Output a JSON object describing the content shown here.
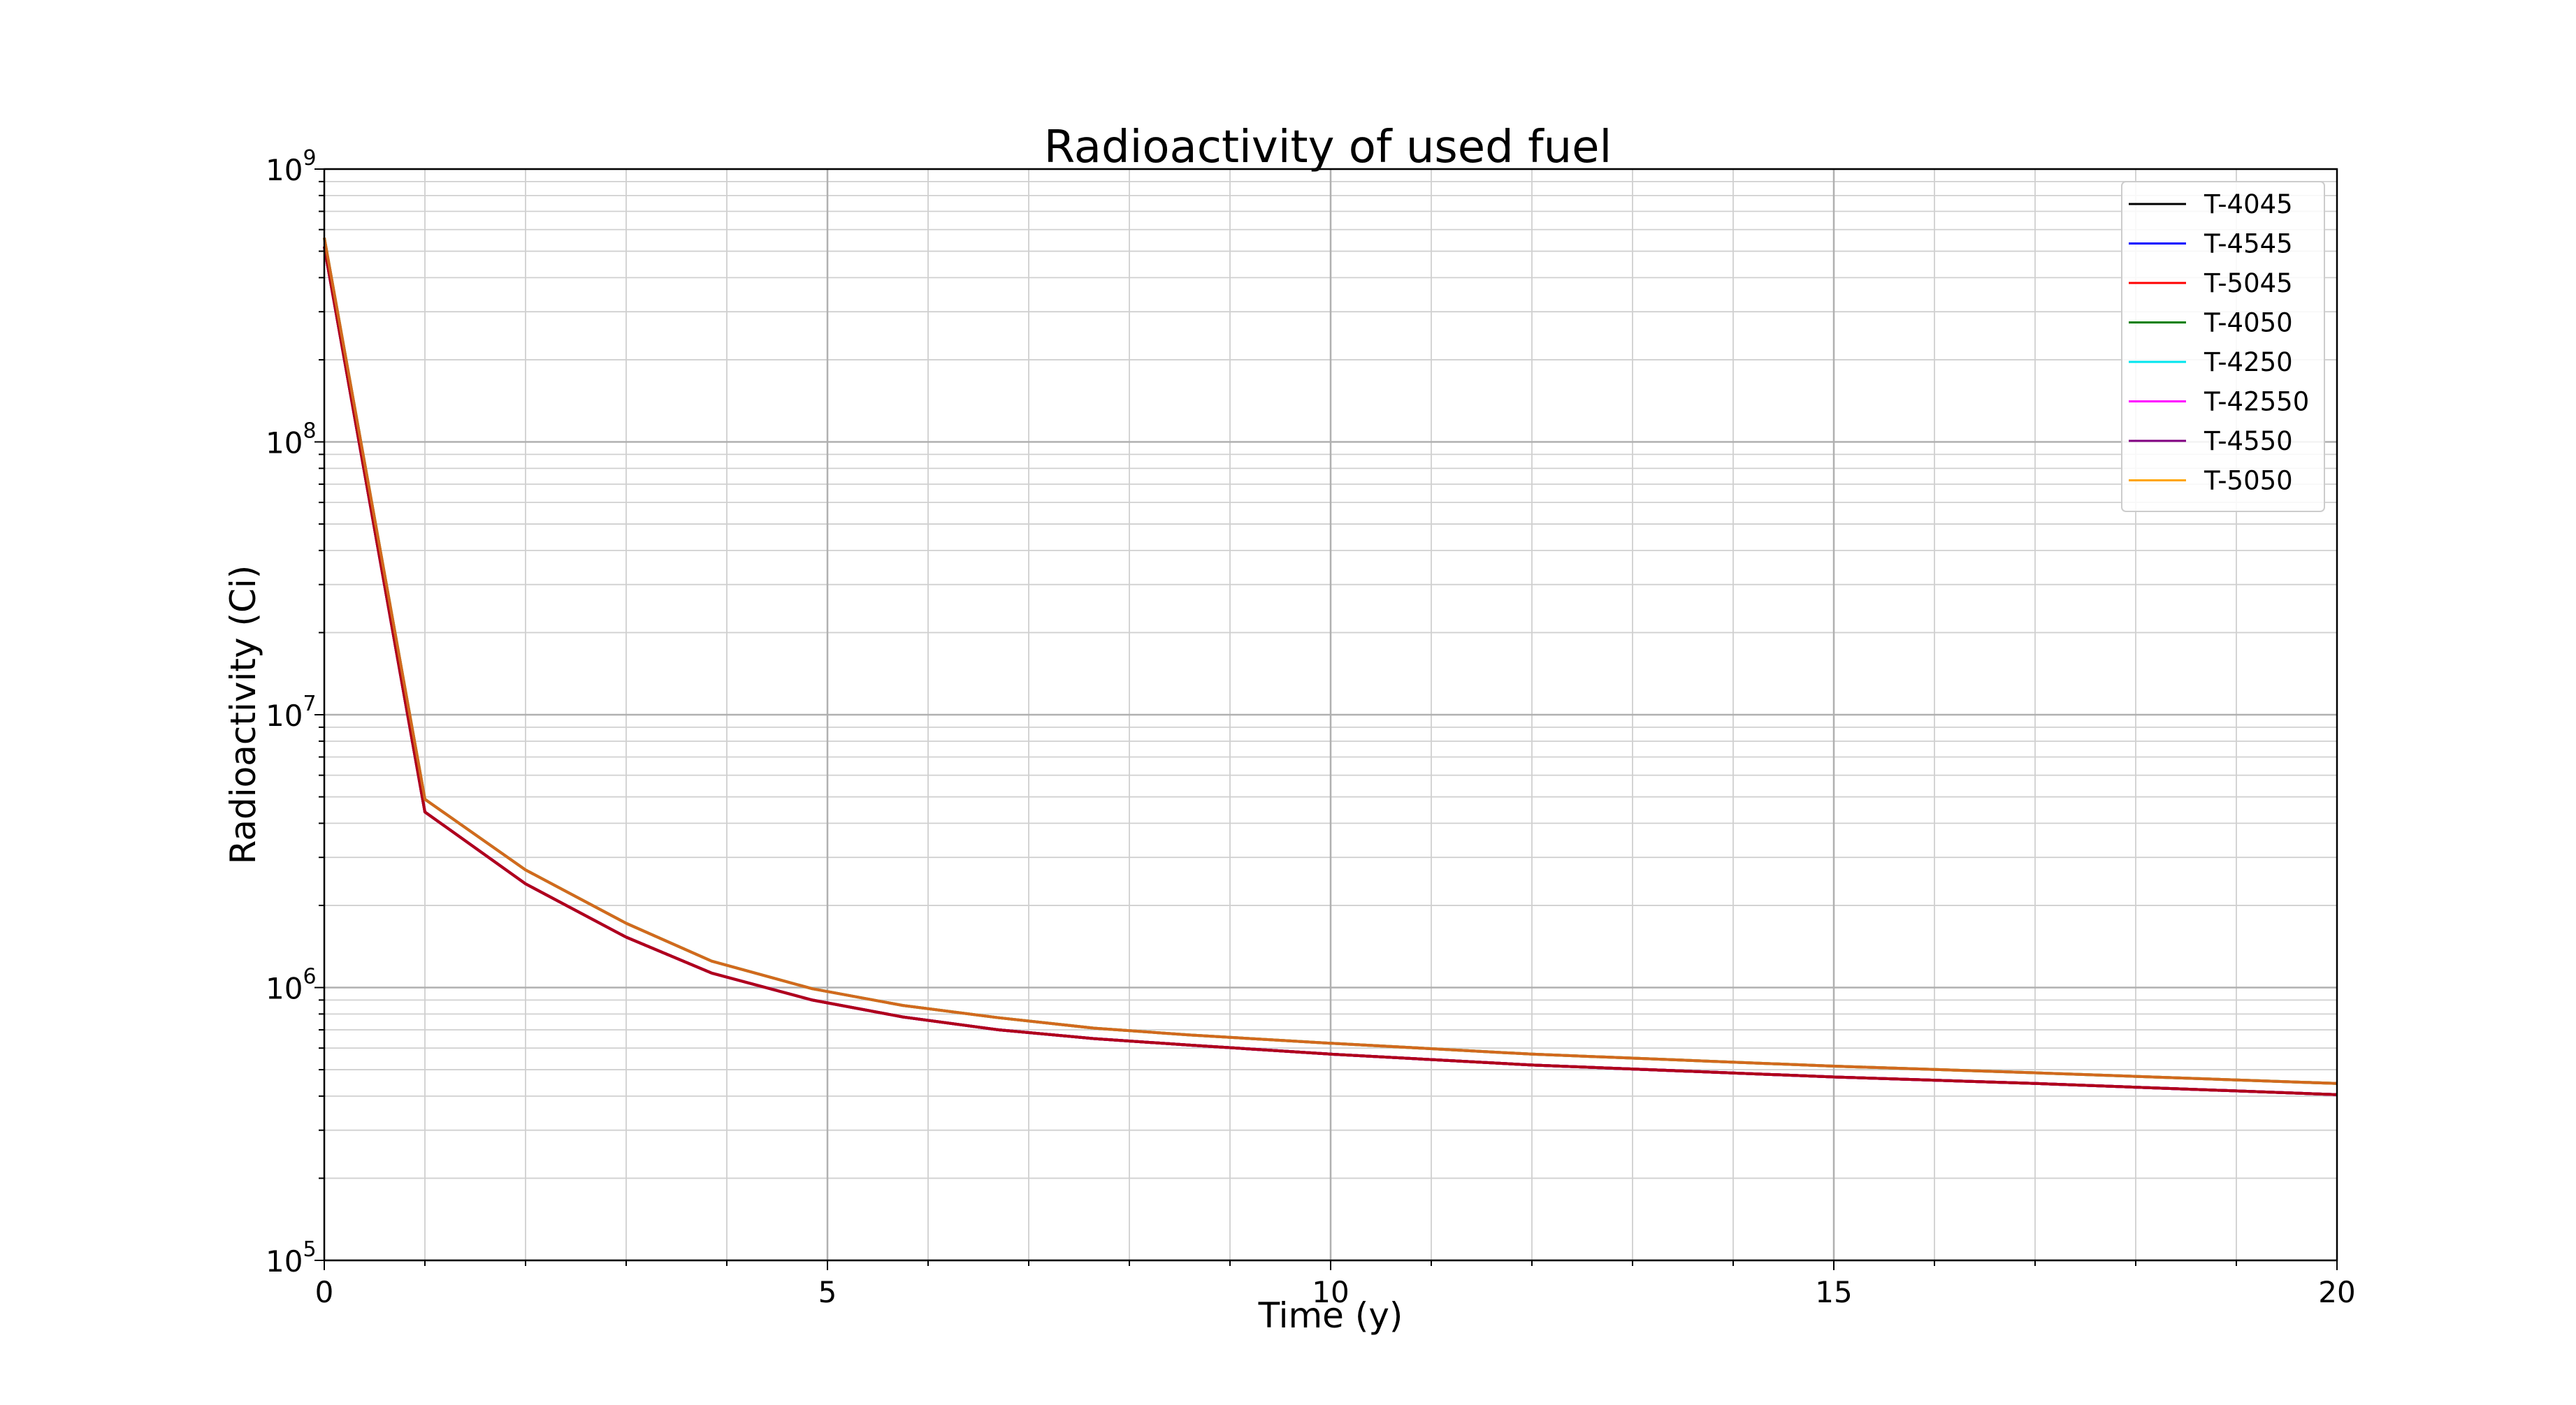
{
  "chart_data": {
    "type": "line",
    "title": "Radioactivity of used fuel",
    "xlabel": "Time (y)",
    "ylabel": "Radioactivity (Ci)",
    "xlim": [
      0,
      20
    ],
    "ylim": [
      100000,
      1000000000
    ],
    "yscale": "log",
    "xticks": [
      0,
      5,
      10,
      15,
      20
    ],
    "xtick_labels": [
      "0",
      "5",
      "10",
      "15",
      "20"
    ],
    "yticks": [
      {
        "base": "10",
        "exp": "5",
        "value": 100000
      },
      {
        "base": "10",
        "exp": "6",
        "value": 1000000
      },
      {
        "base": "10",
        "exp": "7",
        "value": 10000000
      },
      {
        "base": "10",
        "exp": "8",
        "value": 100000000
      },
      {
        "base": "10",
        "exp": "9",
        "value": 1000000000
      }
    ],
    "grid": true,
    "legend_position": "top-right",
    "x": [
      0,
      1,
      2,
      3,
      3.85,
      4.85,
      5.75,
      6.7,
      7.65,
      8.6,
      10,
      12,
      15,
      17,
      20
    ],
    "series": [
      {
        "name": "T-4045",
        "color": "#000000",
        "values": [
          520000000,
          4400000,
          2400000,
          1530000,
          1130000,
          900000,
          780000,
          700000,
          650000,
          615000,
          570000,
          520000,
          470000,
          445000,
          405000
        ]
      },
      {
        "name": "T-4545",
        "color": "#0000ff",
        "values": [
          520000000,
          4400000,
          2400000,
          1530000,
          1130000,
          900000,
          780000,
          700000,
          650000,
          615000,
          570000,
          520000,
          470000,
          445000,
          405000
        ]
      },
      {
        "name": "T-5045",
        "color": "#ff0000",
        "values": [
          520000000,
          4400000,
          2400000,
          1530000,
          1130000,
          900000,
          780000,
          700000,
          650000,
          615000,
          570000,
          520000,
          470000,
          445000,
          405000
        ]
      },
      {
        "name": "T-4050",
        "color": "#008000",
        "values": [
          560000000,
          4900000,
          2700000,
          1720000,
          1250000,
          990000,
          860000,
          775000,
          710000,
          670000,
          625000,
          570000,
          515000,
          487000,
          445000
        ]
      },
      {
        "name": "T-4250",
        "color": "#00e5ee",
        "values": [
          560000000,
          4900000,
          2700000,
          1720000,
          1250000,
          990000,
          860000,
          775000,
          710000,
          670000,
          625000,
          570000,
          515000,
          487000,
          445000
        ]
      },
      {
        "name": "T-42550",
        "color": "#ff00ff",
        "values": [
          520000000,
          4400000,
          2400000,
          1530000,
          1130000,
          900000,
          780000,
          700000,
          650000,
          615000,
          570000,
          520000,
          470000,
          445000,
          405000
        ]
      },
      {
        "name": "T-4550",
        "color": "#800080",
        "values": [
          520000000,
          4400000,
          2400000,
          1530000,
          1130000,
          900000,
          780000,
          700000,
          650000,
          615000,
          570000,
          520000,
          470000,
          445000,
          405000
        ]
      },
      {
        "name": "T-5050",
        "color": "#ffa500",
        "values": [
          560000000,
          4900000,
          2700000,
          1720000,
          1250000,
          990000,
          860000,
          775000,
          710000,
          670000,
          625000,
          570000,
          515000,
          487000,
          445000
        ]
      }
    ],
    "overlay_colors": {
      "lower_group": "#b0001a",
      "upper_group": "#d2691e"
    }
  }
}
